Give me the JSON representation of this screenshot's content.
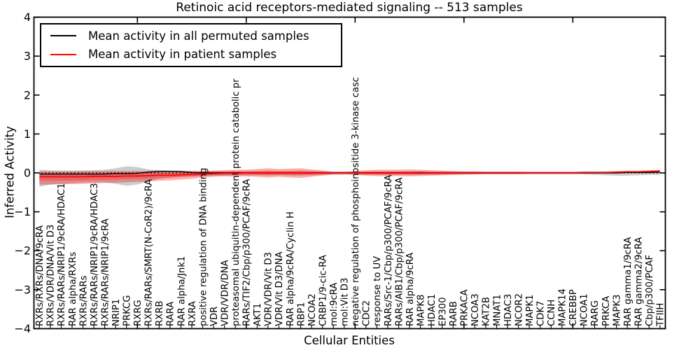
{
  "figure": {
    "title": "Retinoic acid receptors-mediated signaling -- 513 samples",
    "xlabel": "Cellular Entities",
    "ylabel": "Inferred Activity"
  },
  "legend": {
    "entries": [
      {
        "label": "Mean activity in all permuted samples",
        "color": "#000000"
      },
      {
        "label": "Mean activity in patient samples",
        "color": "#ff0000"
      }
    ],
    "position": "upper left"
  },
  "chart_data": {
    "type": "line",
    "title": "Retinoic acid receptors-mediated signaling -- 513 samples",
    "xlabel": "Cellular Entities",
    "ylabel": "Inferred Activity",
    "ylim": [
      -4,
      4
    ],
    "xlim": [
      -0.5,
      57.5
    ],
    "grid": false,
    "legend_position": "upper left",
    "zero_line_style": "dotted",
    "yticks": [
      4,
      3,
      2,
      1,
      0,
      -1,
      -2,
      -3,
      -4
    ],
    "ytick_labels": [
      "4",
      "3",
      "2",
      "1",
      "0",
      "−1",
      "−2",
      "−3",
      "−4"
    ],
    "major_xtick_indices": [
      9,
      19,
      29,
      39,
      49
    ],
    "categories": [
      "RXRs/RXRs/DNA/9cRA",
      "RXRs/VDR/DNA/Vit D3",
      "RXRs/RARs/NRIP1/9cRA/HDAC1",
      "RAR alpha/RXRs",
      "RXRs/RARs",
      "RXRs/RARs/NRIP1/9cRA/HDAC3",
      "RXRs/RARs/NRIP1/9cRA",
      "NRIP1",
      "PRKCG",
      "RXRG",
      "RXRs/RARs/SMRT(N-CoR2)/9cRA",
      "RXRB",
      "RARA",
      "RAR alpha/Jnk1",
      "RXRA",
      "positive regulation of DNA binding",
      "VDR",
      "VDR/VDR/DNA",
      "proteasomal ubiquitin-dependent protein catabolic pr",
      "RARs/TIF2/Cbp/p300/PCAF/9cRA",
      "AKT1",
      "VDR/VDR/Vit D3",
      "VDR/Vit D3/DNA",
      "RAR alpha/9cRA/Cyclin H",
      "RBP1",
      "NCOA2",
      "CRBP1/9-cic-RA",
      "mol:9cRA",
      "mol:Vit D3",
      "negative regulation of phosphoinositide 3-kinase casc",
      "CDC2",
      "response to UV",
      "RARs/Src-1/Cbp/p300/PCAF/9cRA",
      "RARs/AIB1/Cbp/p300/PCAF/9cRA",
      "RAR alpha/9cRA",
      "MAPK8",
      "HDAC1",
      "EP300",
      "RARB",
      "PRKACA",
      "NCOA3",
      "KAT2B",
      "MNAT1",
      "HDAC3",
      "NCOR2",
      "MAPK1",
      "CDK7",
      "CCNH",
      "MAPK14",
      "CREBBP",
      "NCOA1",
      "RARG",
      "PRKCA",
      "MAPK3",
      "RAR gamma1/9cRA",
      "RAR gamma2/9cRA",
      "Cbp/p300/PCAF",
      "TFIIH"
    ],
    "series": [
      {
        "name": "Mean activity in all permuted samples",
        "color": "#000000",
        "style": "solid",
        "values": [
          -0.03,
          -0.03,
          -0.03,
          -0.03,
          -0.03,
          -0.03,
          -0.03,
          -0.02,
          -0.02,
          -0.01,
          0.02,
          0.04,
          0.04,
          0.03,
          0.01,
          0.0,
          0.0,
          0.0,
          0.0,
          0.0,
          0.0,
          0.0,
          0.0,
          0.0,
          0.0,
          0.0,
          0.0,
          0.0,
          0.0,
          0.0,
          0.0,
          0.0,
          0.0,
          0.0,
          0.0,
          0.0,
          0.0,
          0.0,
          0.0,
          0.0,
          0.0,
          0.0,
          0.0,
          0.0,
          0.0,
          0.0,
          0.0,
          0.0,
          0.0,
          0.0,
          0.0,
          0.0,
          0.0,
          0.0,
          0.01,
          0.01,
          0.01,
          0.02
        ]
      },
      {
        "name": "Mean activity in patient samples",
        "color": "#ff0000",
        "style": "solid",
        "values": [
          -0.1,
          -0.1,
          -0.1,
          -0.1,
          -0.1,
          -0.09,
          -0.09,
          -0.09,
          -0.08,
          -0.08,
          -0.07,
          -0.06,
          -0.06,
          -0.05,
          -0.04,
          -0.03,
          -0.02,
          -0.01,
          -0.01,
          0.0,
          0.0,
          0.0,
          0.0,
          0.0,
          0.0,
          0.0,
          0.0,
          0.0,
          0.0,
          0.0,
          0.0,
          0.0,
          0.0,
          0.0,
          0.0,
          0.01,
          0.0,
          0.0,
          0.0,
          0.0,
          0.0,
          0.0,
          0.0,
          0.0,
          0.0,
          0.0,
          0.0,
          0.0,
          0.0,
          0.0,
          0.01,
          0.01,
          0.01,
          0.02,
          0.03,
          0.03,
          0.04,
          0.05
        ]
      }
    ],
    "bands": [
      {
        "name": "permuted-samples-std-band",
        "color": "#808080",
        "opacity": 0.4,
        "low": [
          -0.36,
          -0.3,
          -0.28,
          -0.26,
          -0.25,
          -0.24,
          -0.24,
          -0.28,
          -0.33,
          -0.3,
          -0.22,
          -0.15,
          -0.12,
          -0.1,
          -0.09,
          -0.08,
          -0.07,
          -0.07,
          -0.06,
          -0.06,
          -0.06,
          -0.06,
          -0.06,
          -0.06,
          -0.06,
          -0.06,
          -0.05,
          -0.05,
          -0.05,
          -0.05,
          -0.05,
          -0.05,
          -0.05,
          -0.05,
          -0.05,
          -0.05,
          -0.05,
          -0.05,
          -0.05,
          -0.05,
          -0.04,
          -0.04,
          -0.04,
          -0.04,
          -0.04,
          -0.04,
          -0.04,
          -0.04,
          -0.04,
          -0.04,
          -0.04,
          -0.05,
          -0.06,
          -0.07,
          -0.07,
          -0.06,
          -0.05,
          -0.05
        ],
        "high": [
          0.08,
          0.07,
          0.06,
          0.06,
          0.06,
          0.07,
          0.08,
          0.12,
          0.17,
          0.15,
          0.09,
          0.07,
          0.06,
          0.06,
          0.05,
          0.05,
          0.05,
          0.05,
          0.05,
          0.05,
          0.05,
          0.05,
          0.05,
          0.05,
          0.05,
          0.05,
          0.05,
          0.04,
          0.04,
          0.04,
          0.04,
          0.04,
          0.04,
          0.04,
          0.04,
          0.04,
          0.04,
          0.04,
          0.04,
          0.04,
          0.04,
          0.04,
          0.04,
          0.04,
          0.04,
          0.04,
          0.04,
          0.04,
          0.04,
          0.04,
          0.04,
          0.04,
          0.04,
          0.04,
          0.04,
          0.04,
          0.04,
          0.05
        ]
      },
      {
        "name": "patient-samples-std-band",
        "color": "#ff0000",
        "opacity": 0.32,
        "low": [
          -0.3,
          -0.3,
          -0.29,
          -0.29,
          -0.28,
          -0.27,
          -0.26,
          -0.25,
          -0.24,
          -0.23,
          -0.22,
          -0.2,
          -0.19,
          -0.17,
          -0.15,
          -0.12,
          -0.1,
          -0.09,
          -0.1,
          -0.09,
          -0.1,
          -0.12,
          -0.1,
          -0.12,
          -0.13,
          -0.1,
          -0.07,
          -0.04,
          -0.03,
          -0.05,
          -0.07,
          -0.08,
          -0.09,
          -0.08,
          -0.09,
          -0.08,
          -0.07,
          -0.06,
          -0.05,
          -0.04,
          -0.04,
          -0.03,
          -0.03,
          -0.03,
          -0.03,
          -0.02,
          -0.02,
          -0.02,
          -0.02,
          -0.02,
          -0.02,
          -0.02,
          -0.01,
          -0.01,
          0.0,
          0.0,
          0.01,
          0.02
        ],
        "high": [
          0.04,
          0.04,
          0.04,
          0.04,
          0.05,
          0.05,
          0.05,
          0.05,
          0.05,
          0.05,
          0.05,
          0.05,
          0.05,
          0.05,
          0.05,
          0.05,
          0.06,
          0.07,
          0.08,
          0.08,
          0.1,
          0.12,
          0.1,
          0.11,
          0.12,
          0.09,
          0.06,
          0.03,
          0.03,
          0.05,
          0.07,
          0.08,
          0.08,
          0.08,
          0.09,
          0.08,
          0.07,
          0.06,
          0.05,
          0.04,
          0.04,
          0.03,
          0.03,
          0.03,
          0.03,
          0.02,
          0.02,
          0.02,
          0.02,
          0.02,
          0.03,
          0.03,
          0.03,
          0.04,
          0.05,
          0.05,
          0.06,
          0.07
        ]
      }
    ]
  }
}
